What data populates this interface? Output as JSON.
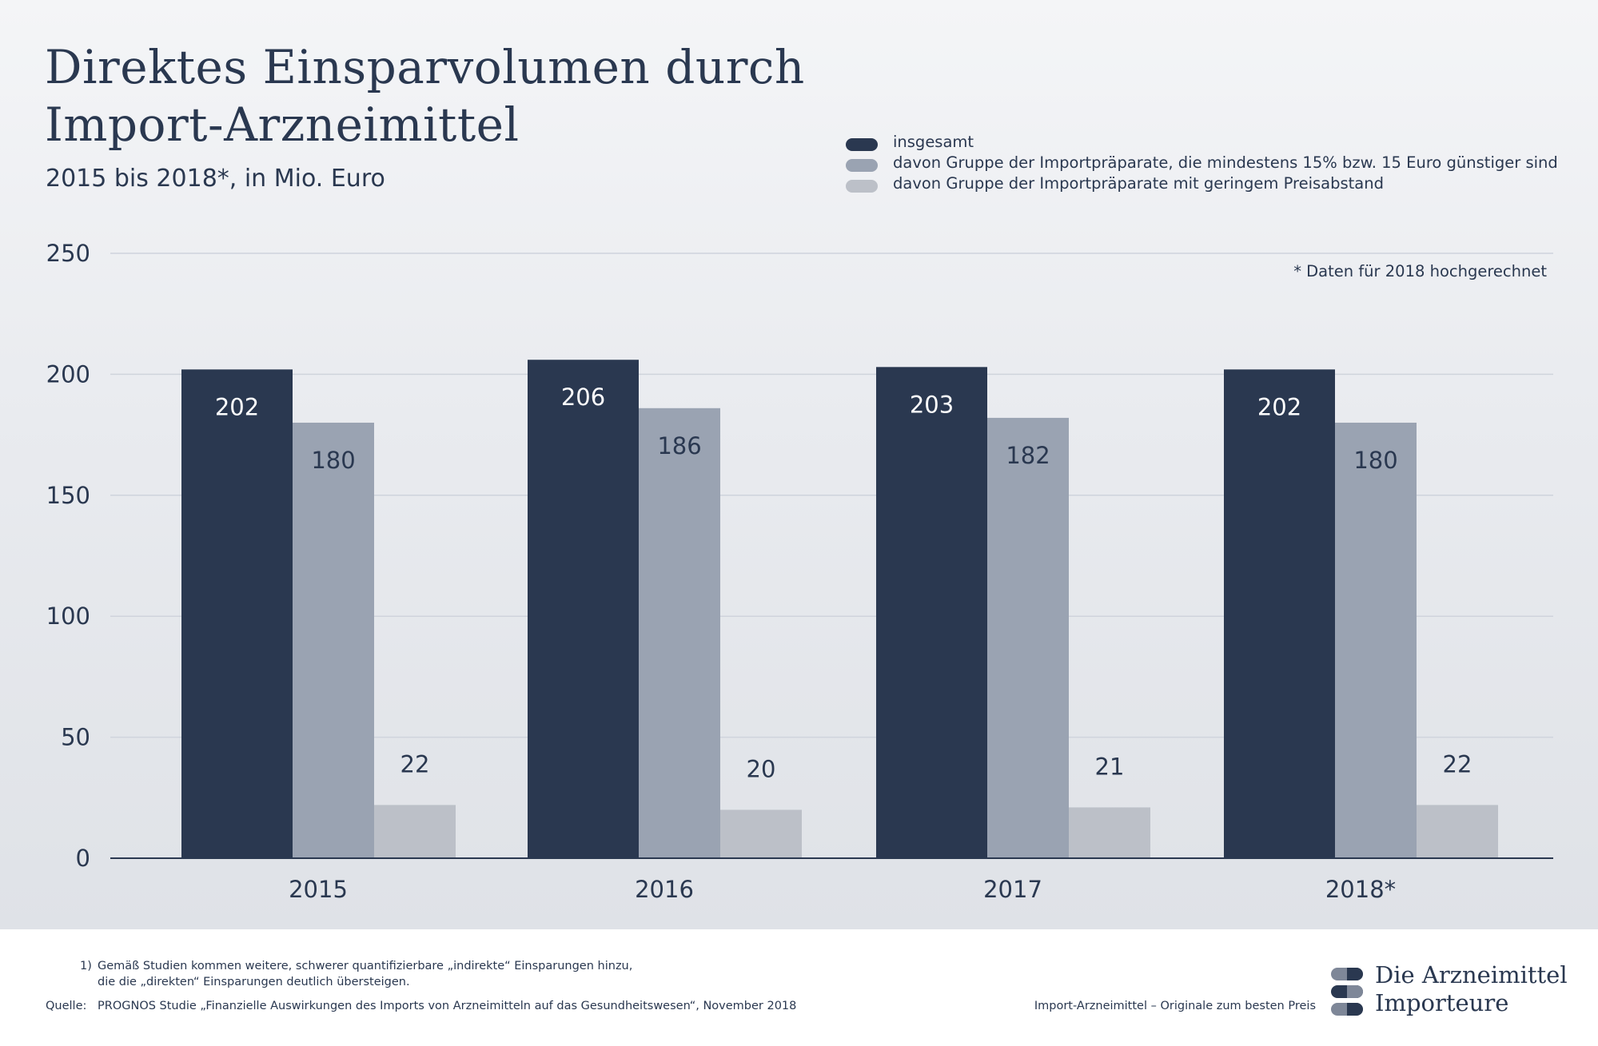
{
  "title_line1": "Direktes Einsparvolumen durch",
  "title_line2": "Import-Arzneimittel",
  "subtitle": "2015 bis 2018*, in Mio. Euro",
  "note": "* Daten für 2018 hochgerechnet",
  "colors": {
    "insgesamt": "#2a3850",
    "group_15": "#9aa3b2",
    "group_low": "#bcc0c8",
    "grid": "#cfd4dc",
    "axis": "#2a3850",
    "label_light": "#ffffff",
    "label_dark": "#2a3850"
  },
  "chart_data": {
    "type": "bar",
    "categories": [
      "2015",
      "2016",
      "2017",
      "2018*"
    ],
    "series": [
      {
        "name": "insgesamt",
        "values": [
          202,
          206,
          203,
          202
        ]
      },
      {
        "name": "davon Gruppe der Importpräparate, die mindestens 15% bzw. 15 Euro günstiger sind",
        "values": [
          180,
          186,
          182,
          180
        ]
      },
      {
        "name": "davon Gruppe der Importpräparate mit geringem Preisabstand",
        "values": [
          22,
          20,
          21,
          22
        ]
      }
    ],
    "value_labels": [
      [
        "202",
        "206",
        "203",
        "202"
      ],
      [
        "180",
        "186",
        "182",
        "180"
      ],
      [
        "22",
        "20",
        "21",
        "22"
      ]
    ],
    "ylim": [
      0,
      250
    ],
    "yticks": [
      0,
      50,
      100,
      150,
      200,
      250
    ],
    "ytick_labels": [
      "0",
      "50",
      "100",
      "150",
      "200",
      "250"
    ],
    "grid": true,
    "legend_position": "top-right"
  },
  "footnote": {
    "marker": "1)",
    "line1": "Gemäß Studien kommen weitere, schwerer quantifizierbare „indirekte“ Einsparungen hinzu,",
    "line2": "die die „direkten“ Einsparungen deutlich übersteigen."
  },
  "source": {
    "label": "Quelle:",
    "text": "PROGNOS Studie „Finanzielle Auswirkungen des Imports von Arzneimitteln auf das Gesundheitswesen“, November 2018"
  },
  "tagline": "Import-Arzneimittel – Originale zum besten Preis",
  "logo": {
    "line1": "Die Arzneimittel",
    "line2": "Importeure"
  }
}
